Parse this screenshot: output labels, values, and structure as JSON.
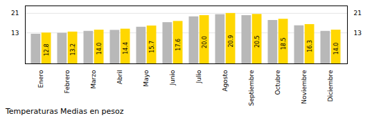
{
  "chart_data": {
    "type": "bar",
    "title": "Temperaturas Medias en pesoz",
    "categories": [
      "Enero",
      "Febrero",
      "Marzo",
      "Abril",
      "Mayo",
      "Junio",
      "Julio",
      "Agosto",
      "Septiembre",
      "Octubre",
      "Noviembre",
      "Diciembre"
    ],
    "series": [
      {
        "color": "#B8B8B8",
        "values": [
          12.3,
          12.7,
          13.5,
          13.9,
          15.2,
          17.1,
          19.5,
          20.4,
          20.0,
          18.0,
          15.8,
          13.5
        ]
      },
      {
        "color": "#FFD700",
        "values": [
          12.8,
          13.2,
          14.0,
          14.4,
          15.7,
          17.6,
          20.0,
          20.9,
          20.5,
          18.5,
          16.3,
          14.0
        ],
        "data_labels": true,
        "value_labels": [
          "12.8",
          "13.2",
          "14.0",
          "14.4",
          "15.7",
          "17.6",
          "20.0",
          "20.9",
          "20.5",
          "18.5",
          "16.3",
          "14.0"
        ]
      }
    ],
    "ylim": [
      0,
      24
    ],
    "yticks": [
      12.8,
      20.9
    ],
    "grid": true
  }
}
